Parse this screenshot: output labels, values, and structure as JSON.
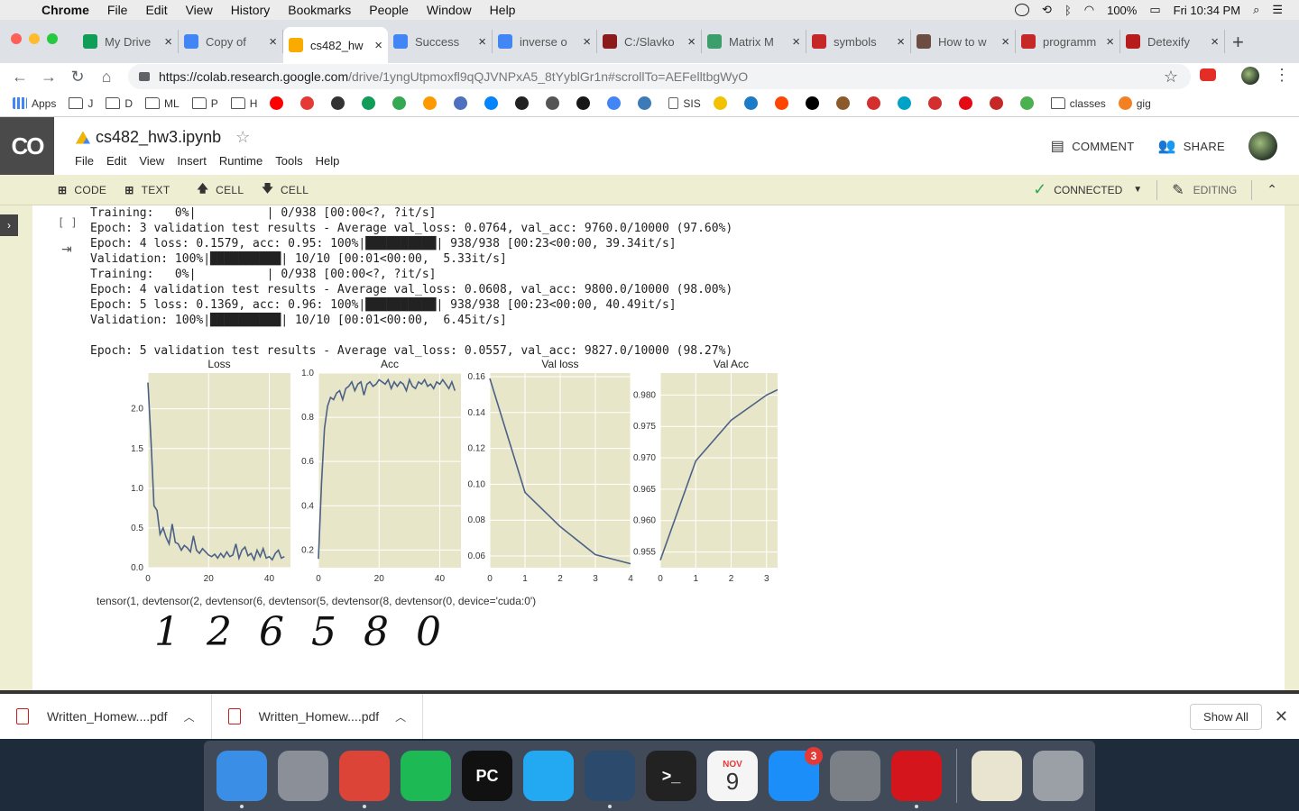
{
  "menubar": {
    "app": "Chrome",
    "items": [
      "File",
      "Edit",
      "View",
      "History",
      "Bookmarks",
      "People",
      "Window",
      "Help"
    ],
    "battery": "100%",
    "clock": "Fri 10:34 PM"
  },
  "tabs": [
    {
      "label": "My Drive",
      "icon": "google-drive-icon",
      "color": "#0f9d58"
    },
    {
      "label": "Copy of",
      "icon": "google-docs-icon",
      "color": "#4285f4"
    },
    {
      "label": "cs482_hw",
      "icon": "colab-icon",
      "color": "#f9ab00",
      "active": true
    },
    {
      "label": "Success",
      "icon": "google-icon",
      "color": "#4285f4"
    },
    {
      "label": "inverse o",
      "icon": "google-icon",
      "color": "#4285f4"
    },
    {
      "label": "C:/Slavko",
      "icon": "site-icon",
      "color": "#8b1a1a"
    },
    {
      "label": "Matrix M",
      "icon": "site-icon",
      "color": "#3b9e6b"
    },
    {
      "label": "symbols",
      "icon": "braces-icon",
      "color": "#c62828"
    },
    {
      "label": "How to w",
      "icon": "site-icon",
      "color": "#6d4c41"
    },
    {
      "label": "programm",
      "icon": "braces-icon",
      "color": "#c62828"
    },
    {
      "label": "Detexify",
      "icon": "site-icon",
      "color": "#b71c1c"
    }
  ],
  "omnibox": {
    "host": "https://colab.research.google.com",
    "path": "/drive/1yngUtpmoxfl9qQJVNPxA5_8tYyblGr1n#scrollTo=AEFelltbgWyO"
  },
  "bookmarks": [
    {
      "label": "Apps",
      "type": "apps"
    },
    {
      "label": "J",
      "type": "folder"
    },
    {
      "label": "D",
      "type": "folder"
    },
    {
      "label": "ML",
      "type": "folder"
    },
    {
      "label": "P",
      "type": "folder"
    },
    {
      "label": "H",
      "type": "folder"
    },
    {
      "label": "",
      "type": "icon",
      "color": "#ff0000"
    },
    {
      "label": "",
      "type": "icon",
      "color": "#e53935"
    },
    {
      "label": "",
      "type": "icon",
      "color": "#333333"
    },
    {
      "label": "",
      "type": "icon",
      "color": "#0f9d58"
    },
    {
      "label": "",
      "type": "icon",
      "color": "#34a853"
    },
    {
      "label": "",
      "type": "icon",
      "color": "#ff9900"
    },
    {
      "label": "",
      "type": "icon",
      "color": "#4f6fbf"
    },
    {
      "label": "",
      "type": "icon",
      "color": "#0084ff"
    },
    {
      "label": "",
      "type": "icon",
      "color": "#222222"
    },
    {
      "label": "",
      "type": "icon",
      "color": "#555555"
    },
    {
      "label": "",
      "type": "icon",
      "color": "#181717"
    },
    {
      "label": "",
      "type": "icon",
      "color": "#4285f4"
    },
    {
      "label": "",
      "type": "icon",
      "color": "#3d7ab8"
    },
    {
      "label": "SIS",
      "type": "page"
    },
    {
      "label": "",
      "type": "icon",
      "color": "#f2c200"
    },
    {
      "label": "",
      "type": "icon",
      "color": "#1c7bc6"
    },
    {
      "label": "",
      "type": "icon",
      "color": "#ff4500"
    },
    {
      "label": "",
      "type": "icon",
      "color": "#000000"
    },
    {
      "label": "",
      "type": "icon",
      "color": "#8a5a2b"
    },
    {
      "label": "",
      "type": "icon",
      "color": "#d32f2f"
    },
    {
      "label": "",
      "type": "icon",
      "color": "#00a2c7"
    },
    {
      "label": "",
      "type": "icon",
      "color": "#d32f2f"
    },
    {
      "label": "",
      "type": "icon",
      "color": "#e50914"
    },
    {
      "label": "",
      "type": "icon",
      "color": "#c62828"
    },
    {
      "label": "",
      "type": "icon",
      "color": "#4caf50"
    },
    {
      "label": "classes",
      "type": "folder"
    },
    {
      "label": "gig",
      "type": "icon",
      "color": "#f48024"
    }
  ],
  "colab": {
    "logo": "CO",
    "title": "cs482_hw3.ipynb",
    "menu": [
      "File",
      "Edit",
      "View",
      "Insert",
      "Runtime",
      "Tools",
      "Help"
    ],
    "comment": "COMMENT",
    "share": "SHARE"
  },
  "celltoolbar": {
    "code": "CODE",
    "text": "TEXT",
    "cell_up": "CELL",
    "cell_down": "CELL",
    "connected": "CONNECTED",
    "editing": "EDITING"
  },
  "cell": {
    "bracket": "[ ]",
    "output_lines": [
      "Training:   0%|          | 0/938 [00:00<?, ?it/s]",
      "Epoch: 3 validation test results - Average val_loss: 0.0764, val_acc: 9760.0/10000 (97.60%)",
      "Epoch: 4 loss: 0.1579, acc: 0.95: 100%|██████████| 938/938 [00:23<00:00, 39.34it/s]",
      "Validation: 100%|██████████| 10/10 [00:01<00:00,  5.33it/s]",
      "Training:   0%|          | 0/938 [00:00<?, ?it/s]",
      "Epoch: 4 validation test results - Average val_loss: 0.0608, val_acc: 9800.0/10000 (98.00%)",
      "Epoch: 5 loss: 0.1369, acc: 0.96: 100%|██████████| 938/938 [00:23<00:00, 40.49it/s]",
      "Validation: 100%|██████████| 10/10 [00:01<00:00,  6.45it/s]",
      "",
      "Epoch: 5 validation test results - Average val_loss: 0.0557, val_acc: 9827.0/10000 (98.27%)"
    ],
    "tensor_line": "tensor(1, devtensor(2, devtensor(6, devtensor(5, devtensor(8, devtensor(0, device='cuda:0')",
    "digits": [
      "1",
      "2",
      "6",
      "5",
      "8",
      "0"
    ]
  },
  "chart_data": [
    {
      "type": "line",
      "title": "Loss",
      "xlim": [
        0,
        47
      ],
      "ylim": [
        0.0,
        2.45
      ],
      "xticks": [
        0,
        20,
        40
      ],
      "yticks": [
        0.0,
        0.5,
        1.0,
        1.5,
        2.0
      ],
      "ytick_labels": [
        "0.0",
        "0.5",
        "1.0",
        "1.5",
        "2.0"
      ],
      "x": [
        0,
        1,
        2,
        3,
        4,
        5,
        6,
        7,
        8,
        9,
        10,
        11,
        12,
        13,
        14,
        15,
        16,
        17,
        18,
        19,
        20,
        21,
        22,
        23,
        24,
        25,
        26,
        27,
        28,
        29,
        30,
        31,
        32,
        33,
        34,
        35,
        36,
        37,
        38,
        39,
        40,
        41,
        42,
        43,
        44,
        45
      ],
      "values": [
        2.33,
        1.6,
        0.78,
        0.72,
        0.42,
        0.5,
        0.38,
        0.3,
        0.55,
        0.32,
        0.3,
        0.22,
        0.28,
        0.25,
        0.2,
        0.4,
        0.22,
        0.18,
        0.24,
        0.2,
        0.16,
        0.14,
        0.17,
        0.12,
        0.18,
        0.13,
        0.2,
        0.14,
        0.16,
        0.3,
        0.12,
        0.22,
        0.26,
        0.15,
        0.18,
        0.1,
        0.22,
        0.14,
        0.24,
        0.12,
        0.14,
        0.1,
        0.18,
        0.22,
        0.12,
        0.14
      ],
      "colors": {
        "line": "#4c6186",
        "bg": "#e8e6c9"
      }
    },
    {
      "type": "line",
      "title": "Acc",
      "xlim": [
        0,
        47
      ],
      "ylim": [
        0.12,
        1.0
      ],
      "xticks": [
        0,
        20,
        40
      ],
      "yticks": [
        0.2,
        0.4,
        0.6,
        0.8,
        1.0
      ],
      "ytick_labels": [
        "0.2",
        "0.4",
        "0.6",
        "0.8",
        "1.0"
      ],
      "x": [
        0,
        1,
        2,
        3,
        4,
        5,
        6,
        7,
        8,
        9,
        10,
        11,
        12,
        13,
        14,
        15,
        16,
        17,
        18,
        19,
        20,
        21,
        22,
        23,
        24,
        25,
        26,
        27,
        28,
        29,
        30,
        31,
        32,
        33,
        34,
        35,
        36,
        37,
        38,
        39,
        40,
        41,
        42,
        43,
        44,
        45
      ],
      "values": [
        0.16,
        0.5,
        0.75,
        0.85,
        0.89,
        0.88,
        0.91,
        0.92,
        0.88,
        0.93,
        0.94,
        0.96,
        0.92,
        0.95,
        0.96,
        0.9,
        0.95,
        0.96,
        0.94,
        0.95,
        0.97,
        0.96,
        0.95,
        0.97,
        0.93,
        0.96,
        0.94,
        0.96,
        0.95,
        0.92,
        0.97,
        0.94,
        0.93,
        0.96,
        0.95,
        0.97,
        0.94,
        0.95,
        0.93,
        0.96,
        0.95,
        0.97,
        0.95,
        0.93,
        0.96,
        0.92
      ],
      "colors": {
        "line": "#4c6186",
        "bg": "#e8e6c9"
      }
    },
    {
      "type": "line",
      "title": "Val loss",
      "xlim": [
        0,
        4
      ],
      "ylim": [
        0.0535,
        0.162
      ],
      "xticks": [
        0,
        1,
        2,
        3,
        4
      ],
      "yticks": [
        0.06,
        0.08,
        0.1,
        0.12,
        0.14,
        0.16
      ],
      "ytick_labels": [
        "0.06",
        "0.08",
        "0.10",
        "0.12",
        "0.14",
        "0.16"
      ],
      "x": [
        0,
        1,
        2,
        3,
        4
      ],
      "values": [
        0.159,
        0.0955,
        0.0764,
        0.0608,
        0.0557
      ],
      "colors": {
        "line": "#4c6186",
        "bg": "#e8e6c9"
      }
    },
    {
      "type": "line",
      "title": "Val Acc",
      "xlim": [
        0,
        4
      ],
      "ylim": [
        0.9525,
        0.9835
      ],
      "xticks": [
        0,
        1,
        2,
        3,
        4
      ],
      "yticks": [
        0.955,
        0.96,
        0.965,
        0.97,
        0.975,
        0.98
      ],
      "ytick_labels": [
        "0.955",
        "0.960",
        "0.965",
        "0.970",
        "0.975",
        "0.980"
      ],
      "x": [
        0,
        1,
        2,
        3,
        4
      ],
      "values": [
        0.9537,
        0.9695,
        0.976,
        0.98,
        0.9827
      ],
      "colors": {
        "line": "#4c6186",
        "bg": "#e8e6c9"
      }
    }
  ],
  "downloads": {
    "items": [
      "Written_Homew....pdf",
      "Written_Homew....pdf"
    ],
    "show_all": "Show All"
  },
  "dock": [
    {
      "name": "finder-icon",
      "color": "#3a8ee6",
      "running": true
    },
    {
      "name": "launchpad-icon",
      "color": "#8a8f98",
      "running": false
    },
    {
      "name": "chrome-icon",
      "color": "#db4437",
      "running": true
    },
    {
      "name": "spotify-icon",
      "color": "#1db954",
      "running": false
    },
    {
      "name": "pycharm-icon",
      "color": "#111111",
      "label": "PC",
      "running": false
    },
    {
      "name": "vscode-icon",
      "color": "#23a9f2",
      "running": false
    },
    {
      "name": "mysql-workbench-icon",
      "color": "#2c4a6b",
      "running": true
    },
    {
      "name": "terminal-icon",
      "color": "#222222",
      "label": ">_",
      "running": false
    },
    {
      "name": "calendar-icon",
      "color": "#f5f5f5",
      "month": "NOV",
      "day": "9",
      "running": false
    },
    {
      "name": "app-store-icon",
      "color": "#1c8ef9",
      "badge": "3",
      "running": false
    },
    {
      "name": "system-preferences-icon",
      "color": "#7b7f86",
      "running": false
    },
    {
      "name": "acrobat-icon",
      "color": "#d4161c",
      "running": true
    },
    {
      "name": "document-stack-icon",
      "color": "#e8e4d0",
      "running": false
    },
    {
      "name": "trash-icon",
      "color": "#9aa0a6",
      "running": false
    }
  ]
}
